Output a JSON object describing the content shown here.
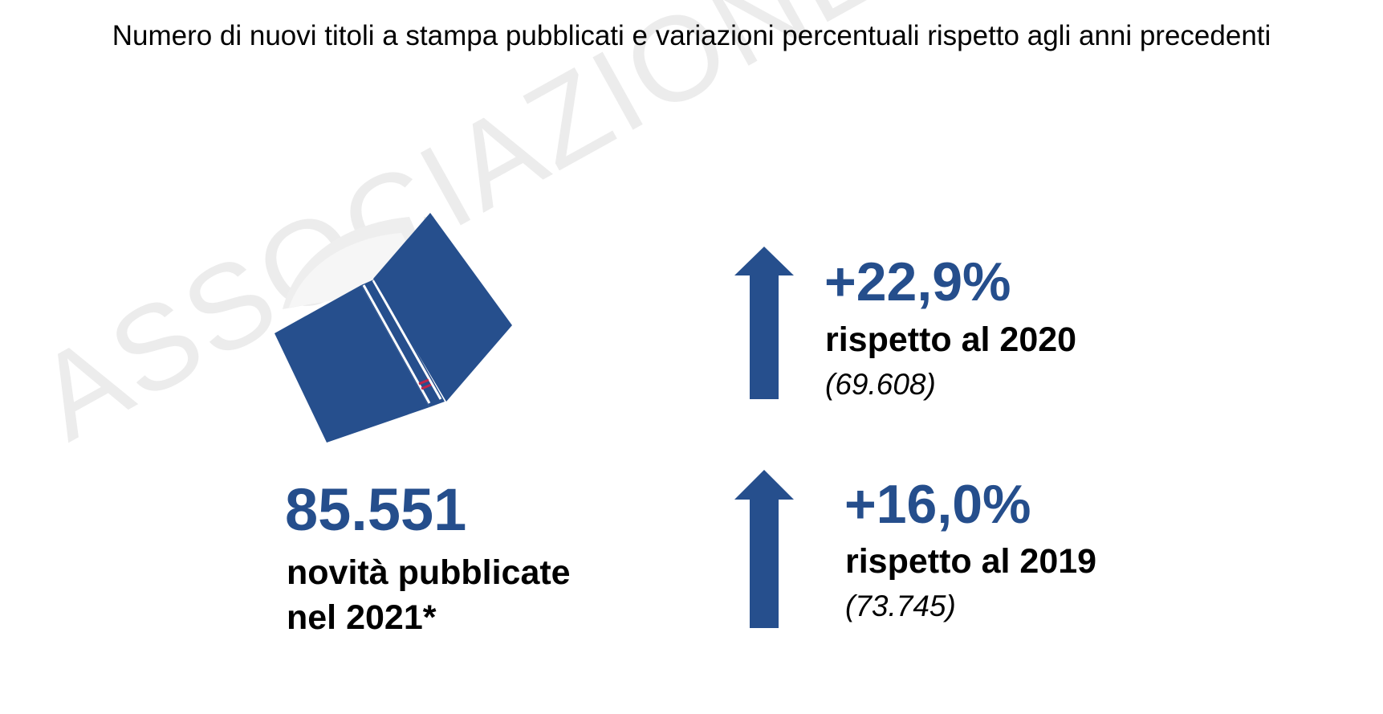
{
  "title": "Numero di nuovi titoli a stampa pubblicati e variazioni percentuali rispetto agli anni precedenti",
  "watermark": "ASSOCIAZIONE ITALIANA EDITORI",
  "total": {
    "value": "85.551",
    "label_line1": "novità pubblicate",
    "label_line2": "nel 2021*"
  },
  "comparisons": [
    {
      "change": "+22,9%",
      "reference": "rispetto al 2020",
      "count": "(69.608)",
      "direction": "up"
    },
    {
      "change": "+16,0%",
      "reference": "rispetto al 2019",
      "count": "(73.745)",
      "direction": "up"
    }
  ],
  "icons": [
    "book-icon",
    "arrow-up-icon"
  ],
  "colors": {
    "accent": "#254e8c",
    "book_spine_mark": "#c0254a",
    "watermark": "#ececec",
    "text": "#000000"
  }
}
